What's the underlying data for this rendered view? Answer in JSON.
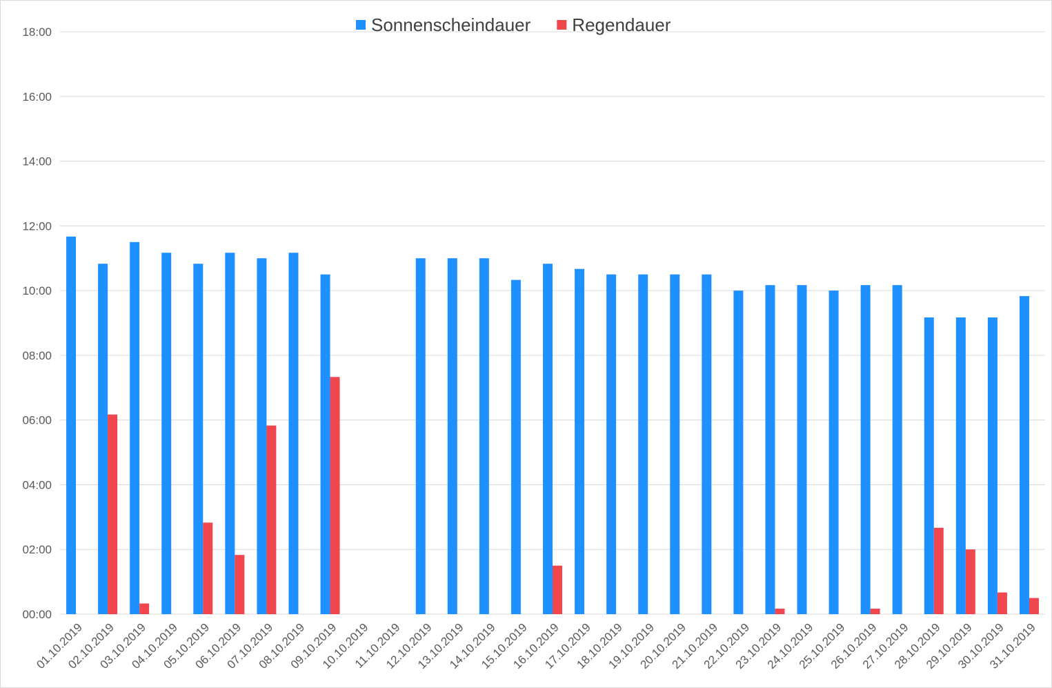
{
  "chart_data": {
    "type": "bar",
    "title": "",
    "xlabel": "",
    "ylabel": "",
    "grid": true,
    "legend_position": "top-center",
    "y_axis_unit": "hours",
    "ylim": [
      0,
      18
    ],
    "y_ticks": [
      0,
      2,
      4,
      6,
      8,
      10,
      12,
      14,
      16,
      18
    ],
    "y_tick_labels": [
      "00:00",
      "02:00",
      "04:00",
      "06:00",
      "08:00",
      "10:00",
      "12:00",
      "14:00",
      "16:00",
      "18:00"
    ],
    "categories": [
      "01.10.2019",
      "02.10.2019",
      "03.10.2019",
      "04.10.2019",
      "05.10.2019",
      "06.10.2019",
      "07.10.2019",
      "08.10.2019",
      "09.10.2019",
      "10.10.2019",
      "11.10.2019",
      "12.10.2019",
      "13.10.2019",
      "14.10.2019",
      "15.10.2019",
      "16.10.2019",
      "17.10.2019",
      "18.10.2019",
      "19.10.2019",
      "20.10.2019",
      "21.10.2019",
      "22.10.2019",
      "23.10.2019",
      "24.10.2019",
      "25.10.2019",
      "26.10.2019",
      "27.10.2019",
      "28.10.2019",
      "29.10.2019",
      "30.10.2019",
      "31.10.2019"
    ],
    "series": [
      {
        "name": "Sonnenscheindauer",
        "color": "#1e90ff",
        "values": [
          11.67,
          10.83,
          11.5,
          11.17,
          10.83,
          11.17,
          11.0,
          11.17,
          10.5,
          0,
          0,
          11.0,
          11.0,
          11.0,
          10.33,
          10.83,
          10.67,
          10.5,
          10.5,
          10.5,
          10.5,
          10.0,
          10.17,
          10.17,
          10.0,
          10.17,
          10.17,
          9.17,
          9.17,
          9.17,
          9.83
        ]
      },
      {
        "name": "Regendauer",
        "color": "#f0474f",
        "values": [
          0,
          6.17,
          0.33,
          0,
          2.83,
          1.83,
          5.83,
          0,
          7.33,
          0,
          0,
          0,
          0,
          0,
          0,
          1.5,
          0,
          0,
          0,
          0,
          0,
          0,
          0.17,
          0,
          0,
          0.17,
          0,
          2.67,
          2.0,
          0.67,
          0.5
        ]
      }
    ]
  }
}
